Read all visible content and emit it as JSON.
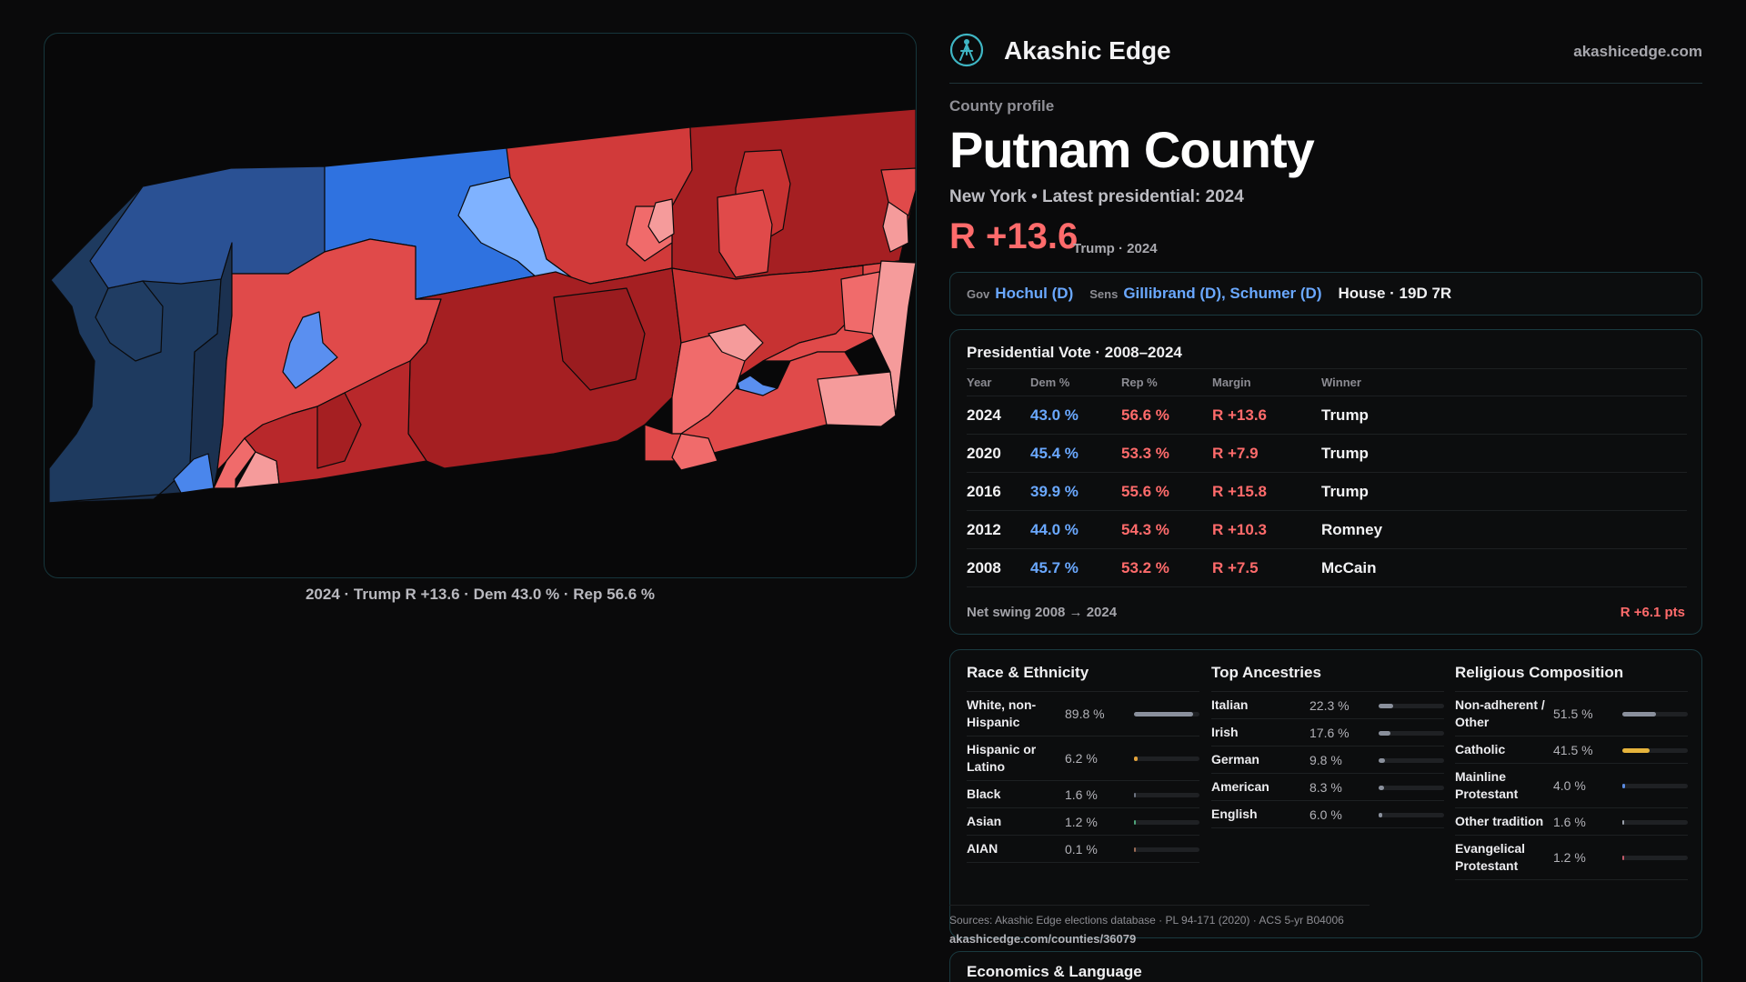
{
  "brand": {
    "name": "Akashic Edge",
    "url": "akashicedge.com",
    "logo_icon": "compass-person-icon"
  },
  "profile": {
    "eyebrow": "County profile",
    "title": "Putnam County",
    "state_line": "New York • Latest presidential: 2024",
    "margin": "R +13.6",
    "margin_note": "Trump · 2024"
  },
  "officials": {
    "gov_label": "Gov",
    "gov": "Hochul (D)",
    "sens_label": "Sens",
    "sens": "Gillibrand (D), Schumer (D)",
    "house": "House · 19D 7R"
  },
  "presidential": {
    "title": "Presidential Vote · 2008–2024",
    "columns": [
      "Year",
      "Dem %",
      "Rep %",
      "Margin",
      "Winner"
    ],
    "rows": [
      {
        "year": "2024",
        "dem": "43.0 %",
        "rep": "56.6 %",
        "margin": "R +13.6",
        "winner": "Trump"
      },
      {
        "year": "2020",
        "dem": "45.4 %",
        "rep": "53.3 %",
        "margin": "R +7.9",
        "winner": "Trump"
      },
      {
        "year": "2016",
        "dem": "39.9 %",
        "rep": "55.6 %",
        "margin": "R +15.8",
        "winner": "Trump"
      },
      {
        "year": "2012",
        "dem": "44.0 %",
        "rep": "54.3 %",
        "margin": "R +10.3",
        "winner": "Romney"
      },
      {
        "year": "2008",
        "dem": "45.7 %",
        "rep": "53.2 %",
        "margin": "R +7.5",
        "winner": "McCain"
      }
    ],
    "swing_label": "Net swing 2008 → 2024",
    "swing_value": "R +6.1 pts"
  },
  "demographics": {
    "race": {
      "title": "Race & Ethnicity",
      "rows": [
        {
          "name": "White, non-Hispanic",
          "value": "89.8 %",
          "fraction": 0.898,
          "color": "#8a909c"
        },
        {
          "name": "Hispanic or Latino",
          "value": "6.2 %",
          "fraction": 0.062,
          "color": "#e3a33b"
        },
        {
          "name": "Black",
          "value": "1.6 %",
          "fraction": 0.016,
          "color": "#6d7380"
        },
        {
          "name": "Asian",
          "value": "1.2 %",
          "fraction": 0.012,
          "color": "#4fa37a"
        },
        {
          "name": "AIAN",
          "value": "0.1 %",
          "fraction": 0.001,
          "color": "#9a6b55"
        }
      ]
    },
    "ancestry": {
      "title": "Top Ancestries",
      "rows": [
        {
          "name": "Italian",
          "value": "22.3 %",
          "fraction": 0.223,
          "color": "#8a909c"
        },
        {
          "name": "Irish",
          "value": "17.6 %",
          "fraction": 0.176,
          "color": "#8a909c"
        },
        {
          "name": "German",
          "value": "9.8 %",
          "fraction": 0.098,
          "color": "#8a909c"
        },
        {
          "name": "American",
          "value": "8.3 %",
          "fraction": 0.083,
          "color": "#8a909c"
        },
        {
          "name": "English",
          "value": "6.0 %",
          "fraction": 0.06,
          "color": "#8a909c"
        }
      ]
    },
    "religion": {
      "title": "Religious Composition",
      "rows": [
        {
          "name": "Non-adherent / Other",
          "value": "51.5 %",
          "fraction": 0.515,
          "color": "#8a909c"
        },
        {
          "name": "Catholic",
          "value": "41.5 %",
          "fraction": 0.415,
          "color": "#e6b43c"
        },
        {
          "name": "Mainline Protestant",
          "value": "4.0 %",
          "fraction": 0.04,
          "color": "#5b8be0"
        },
        {
          "name": "Other tradition",
          "value": "1.6 %",
          "fraction": 0.016,
          "color": "#9aa0aa"
        },
        {
          "name": "Evangelical Protestant",
          "value": "1.2 %",
          "fraction": 0.012,
          "color": "#c05a6a"
        }
      ]
    }
  },
  "sources": {
    "text": "Sources: Akashic Edge elections database · PL 94-171 (2020) · ACS 5-yr B04006",
    "url": "akashicedge.com/counties/36079"
  },
  "next_section": {
    "title": "Economics & Language"
  },
  "map": {
    "caption": "2024 · Trump R +13.6 · Dem 43.0 % · Rep 56.6 %",
    "colors": {
      "dem_dark": "#1e3a5f",
      "dem_mid": "#2a5194",
      "dem": "#2f72e0",
      "dem_light": "#7fb2ff",
      "rep_pale": "#f59b9b",
      "rep_light": "#f06b6b",
      "rep": "#e04a4a",
      "rep_mid": "#c73232",
      "rep_dark": "#a51f22"
    }
  }
}
